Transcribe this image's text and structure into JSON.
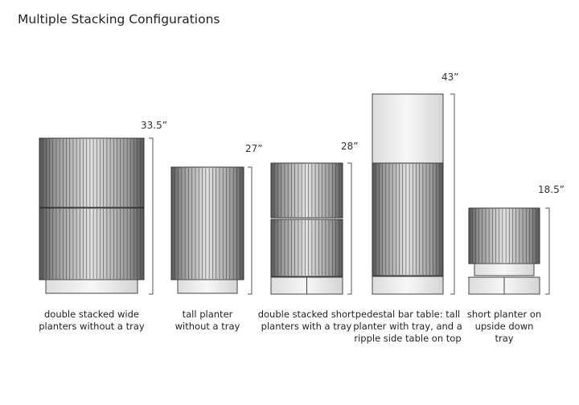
{
  "title": "Multiple Stacking Configurations",
  "configurations": [
    {
      "height": "33.5”",
      "caption": "double stacked wide planters without a tray"
    },
    {
      "height": "27”",
      "caption": "tall planter without a tray"
    },
    {
      "height": "28”",
      "caption": "double stacked short planters with a tray"
    },
    {
      "height": "43”",
      "caption": "pedestal bar table: tall planter with tray, and a ripple side table on top"
    },
    {
      "height": "18.5”",
      "caption": "short planter on upside down tray"
    }
  ]
}
